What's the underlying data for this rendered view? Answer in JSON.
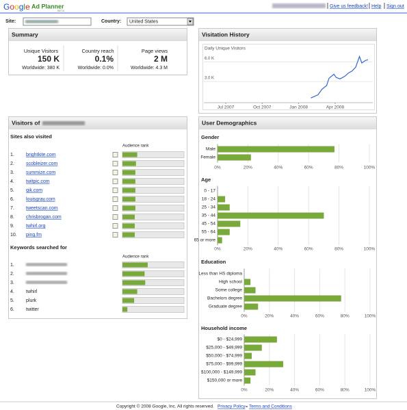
{
  "header": {
    "logo": "Google",
    "product": "Ad Planner",
    "beta": "BETA",
    "links": [
      "Give us feedback!",
      "Help",
      "Sign out"
    ]
  },
  "search": {
    "site_label": "Site:",
    "country_label": "Country:",
    "country": "United States"
  },
  "summary": {
    "title": "Summary",
    "metrics": [
      {
        "label": "Unique Visitors",
        "value": "150 K",
        "worldwide": "Worldwide: 380 K"
      },
      {
        "label": "Country reach",
        "value": "0.1%",
        "worldwide": "Worldwide: 0.0%"
      },
      {
        "label": "Page views",
        "value": "2 M",
        "worldwide": "Worldwide: 4.3 M"
      }
    ]
  },
  "panels": {
    "visitation": "Visitation History",
    "visitors": "Visitors of",
    "demographics": "User Demographics"
  },
  "chart_data": [
    {
      "type": "line",
      "title": "Daily Unique Visitors",
      "color": "#3366cc",
      "grid": true,
      "x": [
        9.0,
        9.6,
        9.9,
        10.3,
        10.5,
        10.9,
        11.1,
        11.4,
        11.8,
        12.1,
        12.4,
        12.7,
        13.0,
        13.2,
        13.5,
        13.7
      ],
      "values": [
        0.5,
        1.0,
        1.8,
        2.4,
        3.5,
        4.1,
        3.6,
        3.4,
        3.8,
        4.3,
        4.6,
        5.2,
        6.8,
        5.8,
        6.2,
        6.3
      ],
      "xlim": [
        0.2,
        14.1
      ],
      "xticks": [
        {
          "value": 2,
          "label": "Jul 2007"
        },
        {
          "value": 5,
          "label": "Oct 2007"
        },
        {
          "value": 8,
          "label": "Jan 2008"
        },
        {
          "value": 11,
          "label": "Apr 2008"
        }
      ],
      "ylim": [
        -0.2,
        8.3
      ],
      "yticks": [
        {
          "value": 3,
          "label": "3.0 K"
        },
        {
          "value": 6,
          "label": "6.0 K"
        }
      ]
    },
    {
      "type": "hbar",
      "title": "Sites also visited",
      "value_axis_label": "Audience rank",
      "color": "#79a83b",
      "ranks": [
        "1.",
        "2.",
        "3.",
        "4.",
        "5.",
        "6.",
        "7.",
        "8.",
        "9.",
        "10."
      ],
      "categories": [
        "brightkite.com",
        "scobleizer.com",
        "summize.com",
        "twitpic.com",
        "qik.com",
        "louisgray.com",
        "tweetscan.com",
        "chrisbrogan.com",
        "twhirl.org",
        "ping.fm"
      ],
      "values": [
        24,
        22,
        21,
        21,
        21,
        21,
        21,
        20,
        20,
        20
      ],
      "xlim": [
        0,
        100
      ]
    },
    {
      "type": "hbar",
      "title": "Keywords searched for",
      "value_axis_label": "Audience rank",
      "color": "#79a83b",
      "ranks": [
        "1.",
        "2.",
        "3.",
        "4.",
        "5.",
        "6."
      ],
      "categories": [
        null,
        null,
        null,
        "twhirl",
        "plurk",
        "twitter"
      ],
      "values": [
        41,
        36,
        37,
        24,
        19,
        8
      ],
      "xlim": [
        0,
        100
      ]
    },
    {
      "type": "hbar",
      "title": "Gender",
      "color": "#79a83b",
      "categories": [
        "Male",
        "Female"
      ],
      "values": [
        77,
        22
      ],
      "xlim": [
        0,
        100
      ],
      "xticks": [
        {
          "value": 0,
          "label": "0%"
        },
        {
          "value": 20,
          "label": "20%"
        },
        {
          "value": 40,
          "label": "40%"
        },
        {
          "value": 60,
          "label": "60%"
        },
        {
          "value": 80,
          "label": "80%"
        },
        {
          "value": 100,
          "label": "100%"
        }
      ]
    },
    {
      "type": "hbar",
      "title": "Age",
      "color": "#79a83b",
      "categories": [
        "0 - 17",
        "18 - 24",
        "25 - 34",
        "35 - 44",
        "45 - 54",
        "55 - 64",
        "65 or more"
      ],
      "values": [
        0,
        5,
        8,
        70,
        15,
        8,
        3
      ],
      "xlim": [
        0,
        100
      ],
      "xticks": [
        {
          "value": 0,
          "label": "0%"
        },
        {
          "value": 20,
          "label": "20%"
        },
        {
          "value": 40,
          "label": "40%"
        },
        {
          "value": 60,
          "label": "60%"
        },
        {
          "value": 80,
          "label": "80%"
        },
        {
          "value": 100,
          "label": "100%"
        }
      ]
    },
    {
      "type": "hbar",
      "title": "Education",
      "color": "#79a83b",
      "categories": [
        "Less than HS diploma",
        "High school",
        "Some college",
        "Bachelors degree",
        "Graduate degree"
      ],
      "values": [
        0,
        5,
        9,
        77,
        11
      ],
      "xlim": [
        0,
        100
      ],
      "xticks": [
        {
          "value": 0,
          "label": "0%"
        },
        {
          "value": 20,
          "label": "20%"
        },
        {
          "value": 40,
          "label": "40%"
        },
        {
          "value": 60,
          "label": "60%"
        },
        {
          "value": 80,
          "label": "80%"
        },
        {
          "value": 100,
          "label": "100%"
        }
      ]
    },
    {
      "type": "hbar",
      "title": "Household income",
      "color": "#79a83b",
      "categories": [
        "$0 - $24,999",
        "$25,000 - $49,999",
        "$50,000 - $74,999",
        "$75,000 - $99,999",
        "$100,000 - $149,999",
        "$150,000 or more"
      ],
      "values": [
        26,
        14,
        6,
        31,
        9,
        5
      ],
      "xlim": [
        0,
        100
      ],
      "xticks": [
        {
          "value": 0,
          "label": "0%"
        },
        {
          "value": 20,
          "label": "20%"
        },
        {
          "value": 40,
          "label": "40%"
        },
        {
          "value": 60,
          "label": "60%"
        },
        {
          "value": 80,
          "label": "80%"
        },
        {
          "value": 100,
          "label": "100%"
        }
      ]
    }
  ],
  "footer": {
    "copyright": "Copyright © 2008 Google, Inc. All rights reserved.",
    "links": [
      "Privacy Policy",
      "Terms and Conditions"
    ]
  }
}
